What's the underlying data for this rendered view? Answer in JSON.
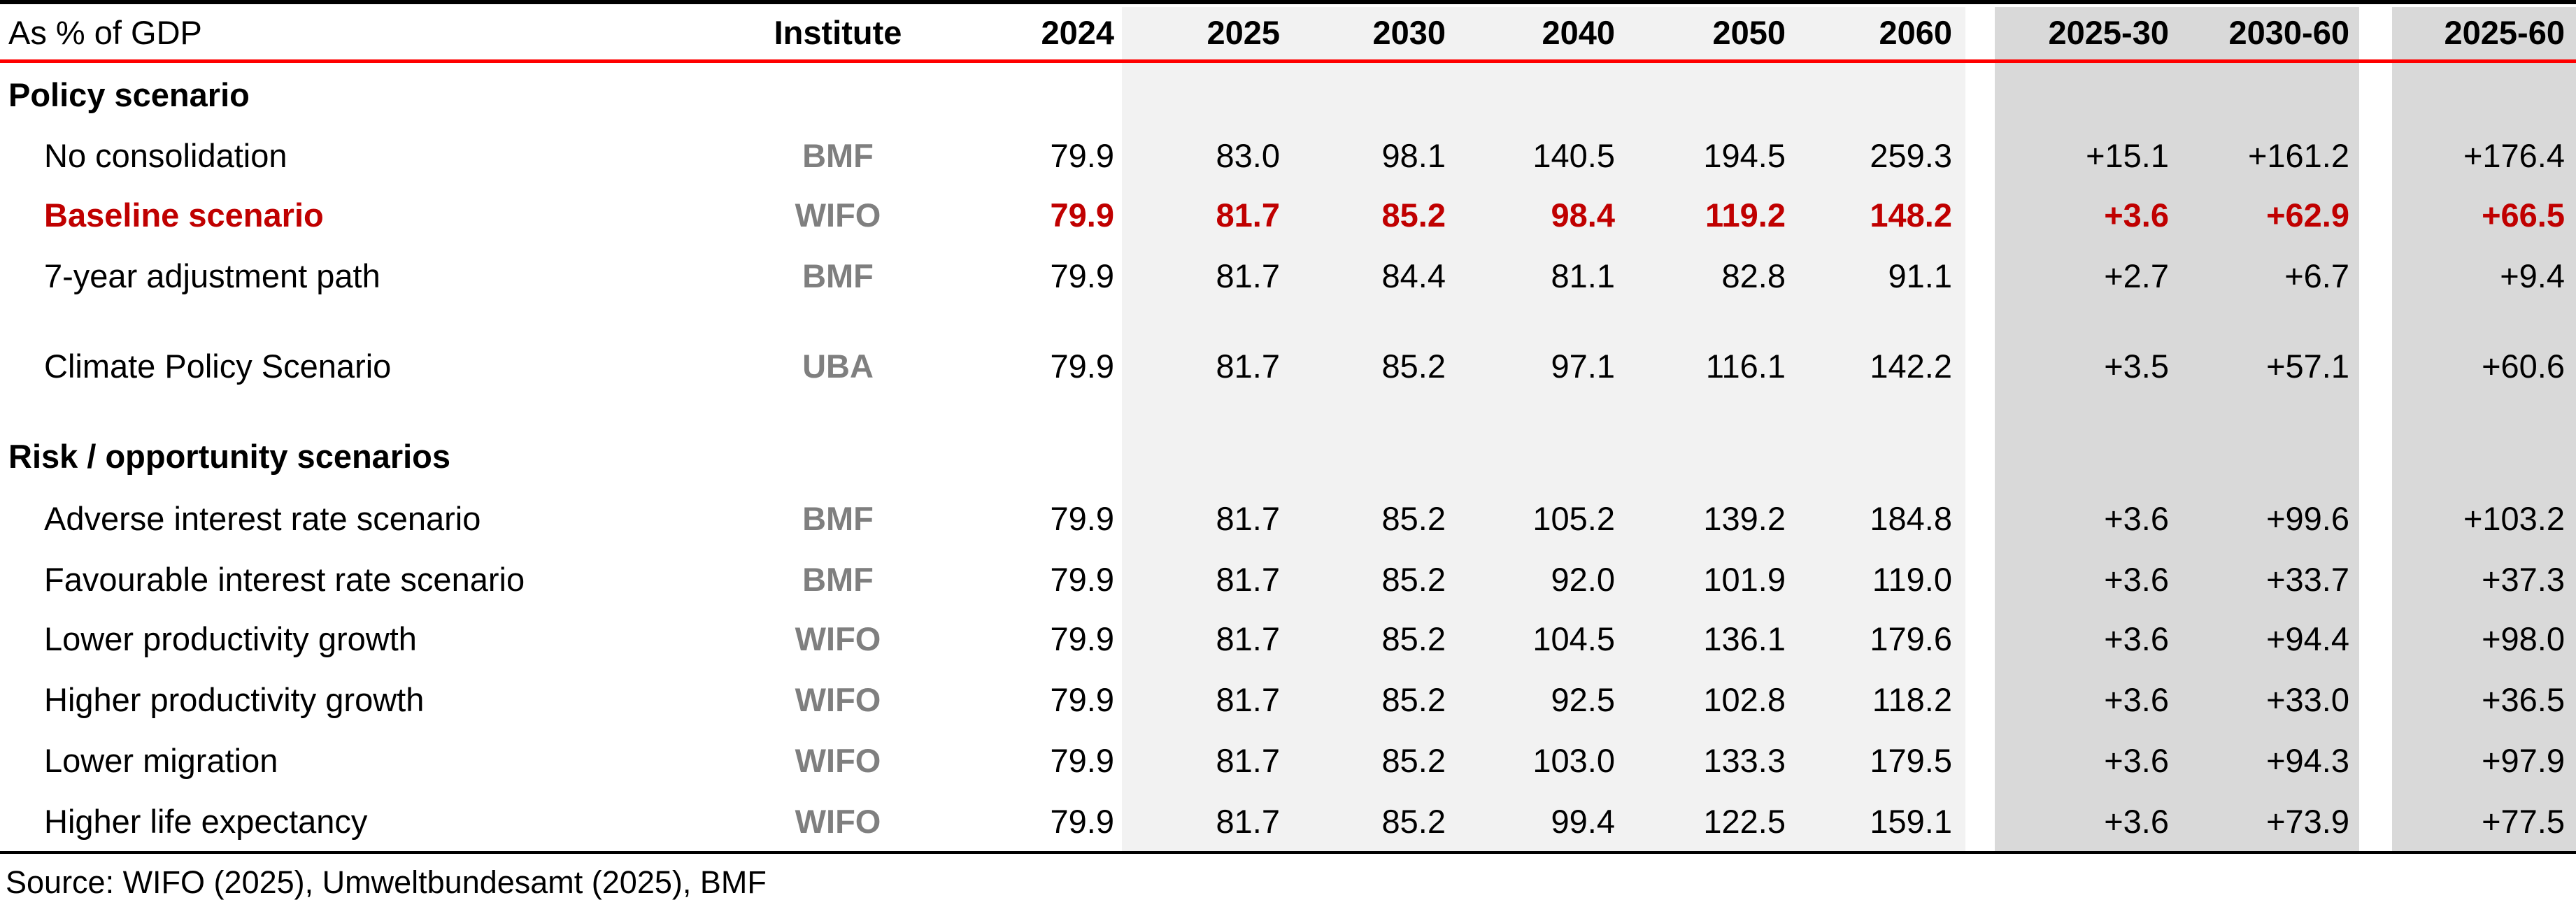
{
  "header": {
    "label": "As % of GDP",
    "institute": "Institute",
    "years": [
      "2024",
      "2025",
      "2030",
      "2040",
      "2050",
      "2060",
      "2025-30",
      "2030-60",
      "2025-60"
    ]
  },
  "sections": [
    {
      "title": "Policy scenario"
    },
    {
      "title": "Risk / opportunity scenarios"
    }
  ],
  "rows": [
    {
      "label": "No consolidation",
      "institute": "BMF",
      "values": [
        "79.9",
        "83.0",
        "98.1",
        "140.5",
        "194.5",
        "259.3",
        "+15.1",
        "+161.2",
        "+176.4"
      ],
      "highlight": false
    },
    {
      "label": "Baseline scenario",
      "institute": "WIFO",
      "values": [
        "79.9",
        "81.7",
        "85.2",
        "98.4",
        "119.2",
        "148.2",
        "+3.6",
        "+62.9",
        "+66.5"
      ],
      "highlight": true
    },
    {
      "label": "7-year adjustment path",
      "institute": "BMF",
      "values": [
        "79.9",
        "81.7",
        "84.4",
        "81.1",
        "82.8",
        "91.1",
        "+2.7",
        "+6.7",
        "+9.4"
      ],
      "highlight": false
    },
    {
      "label": "Climate Policy Scenario",
      "institute": "UBA",
      "values": [
        "79.9",
        "81.7",
        "85.2",
        "97.1",
        "116.1",
        "142.2",
        "+3.5",
        "+57.1",
        "+60.6"
      ],
      "highlight": false
    },
    {
      "label": "Adverse interest rate scenario",
      "institute": "BMF",
      "values": [
        "79.9",
        "81.7",
        "85.2",
        "105.2",
        "139.2",
        "184.8",
        "+3.6",
        "+99.6",
        "+103.2"
      ],
      "highlight": false
    },
    {
      "label": "Favourable interest rate scenario",
      "institute": "BMF",
      "values": [
        "79.9",
        "81.7",
        "85.2",
        "92.0",
        "101.9",
        "119.0",
        "+3.6",
        "+33.7",
        "+37.3"
      ],
      "highlight": false
    },
    {
      "label": "Lower productivity growth",
      "institute": "WIFO",
      "values": [
        "79.9",
        "81.7",
        "85.2",
        "104.5",
        "136.1",
        "179.6",
        "+3.6",
        "+94.4",
        "+98.0"
      ],
      "highlight": false
    },
    {
      "label": "Higher productivity growth",
      "institute": "WIFO",
      "values": [
        "79.9",
        "81.7",
        "85.2",
        "92.5",
        "102.8",
        "118.2",
        "+3.6",
        "+33.0",
        "+36.5"
      ],
      "highlight": false
    },
    {
      "label": "Lower migration",
      "institute": "WIFO",
      "values": [
        "79.9",
        "81.7",
        "85.2",
        "103.0",
        "133.3",
        "179.5",
        "+3.6",
        "+94.3",
        "+97.9"
      ],
      "highlight": false
    },
    {
      "label": "Higher life expectancy",
      "institute": "WIFO",
      "values": [
        "79.9",
        "81.7",
        "85.2",
        "99.4",
        "122.5",
        "159.1",
        "+3.6",
        "+73.9",
        "+77.5"
      ],
      "highlight": false
    }
  ],
  "source": "Source: WIFO (2025), Umweltbundesamt (2025), BMF",
  "colors": {
    "highlight": "#c00000",
    "rule": "#ff0000",
    "institute": "#7f7f7f",
    "light_band": "#f2f2f2",
    "dark_band": "#d9d9d9"
  }
}
